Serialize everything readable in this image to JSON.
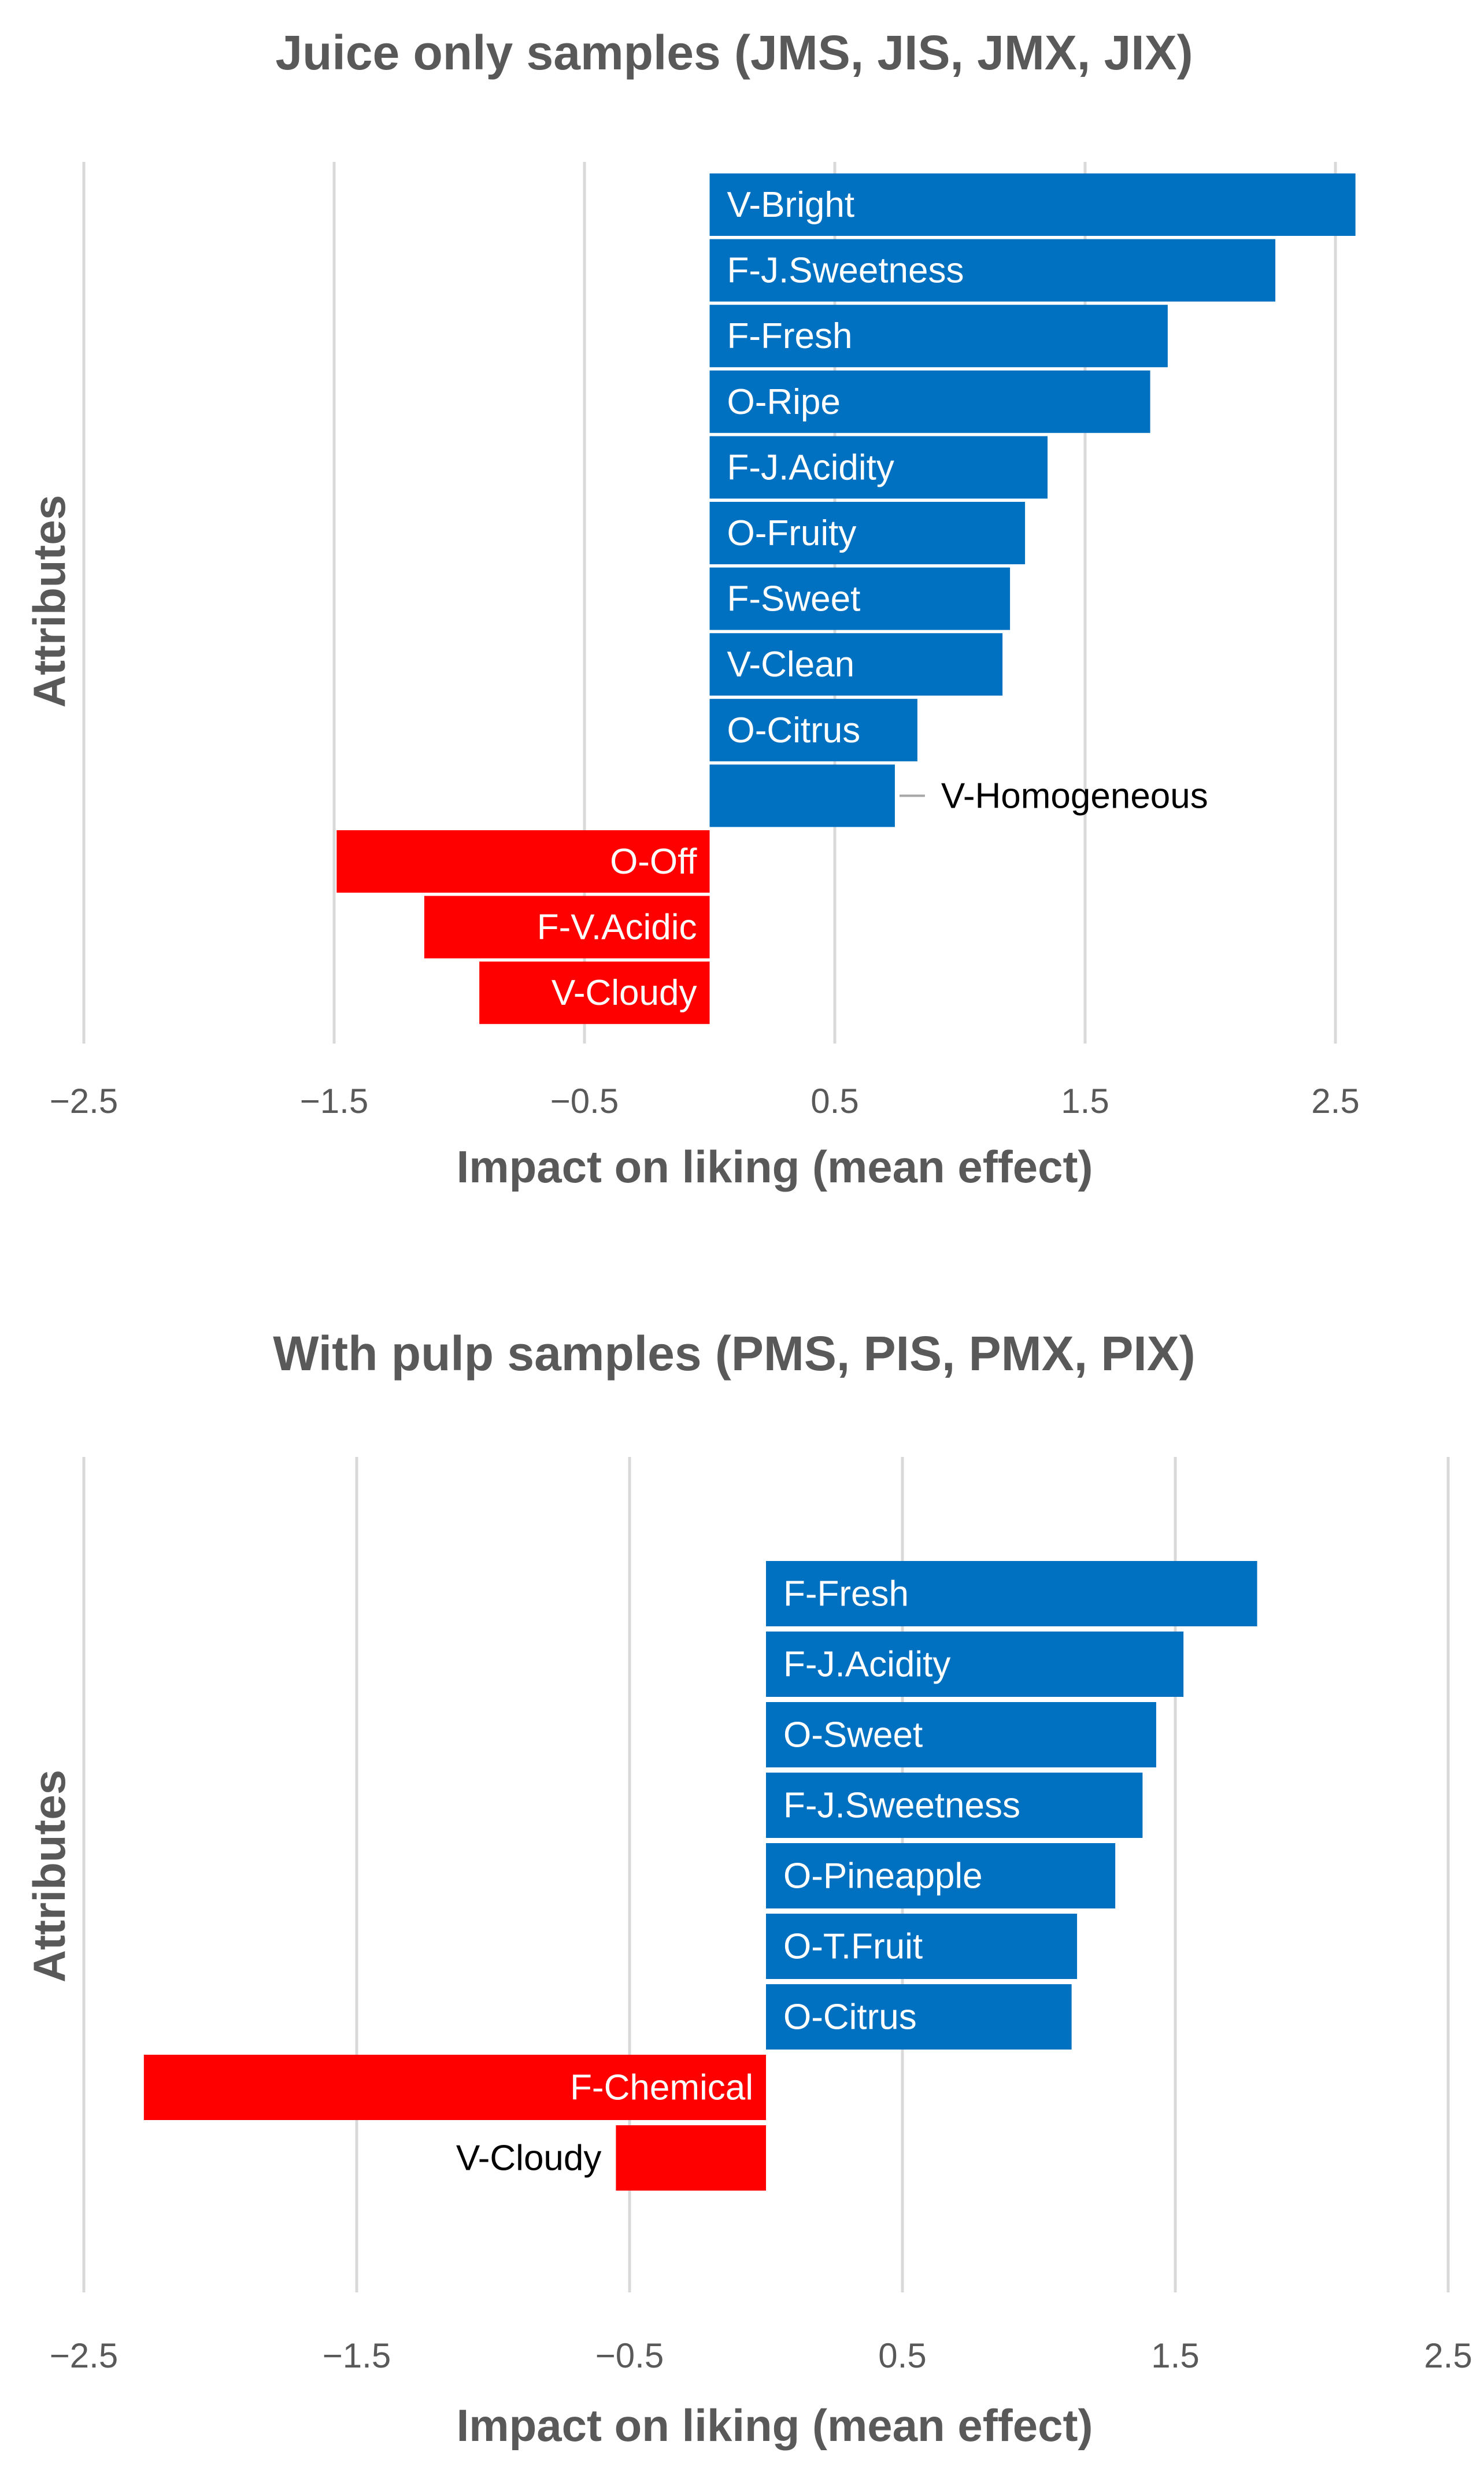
{
  "colors": {
    "positive": "#0070C0",
    "negative": "#FF0000",
    "grid": "#D9D9D9",
    "text": "#595959"
  },
  "chart_data": [
    {
      "type": "bar",
      "orientation": "horizontal",
      "title": "Juice only samples (JMS, JIS, JMX, JIX)",
      "xlabel": "Impact on liking (mean effect)",
      "ylabel": "Attributes",
      "xlim": [
        -2.5,
        2.5
      ],
      "xticks": [
        -2.5,
        -1.5,
        -0.5,
        0.5,
        1.5,
        2.5
      ],
      "xtick_labels": [
        "−2.5",
        "−1.5",
        "−0.5",
        "0.5",
        "1.5",
        "2.5"
      ],
      "grid": true,
      "categories": [
        "V-Bright",
        "F-J.Sweetness",
        "F-Fresh",
        "O-Ripe",
        "F-J.Acidity",
        "O-Fruity",
        "F-Sweet",
        "V-Clean",
        "O-Citrus",
        "V-Homogeneous",
        "O-Off",
        "F-V.Acidic",
        "V-Cloudy"
      ],
      "values": [
        2.58,
        2.26,
        1.83,
        1.76,
        1.35,
        1.26,
        1.2,
        1.17,
        0.83,
        0.74,
        -1.49,
        -1.14,
        -0.92
      ]
    },
    {
      "type": "bar",
      "orientation": "horizontal",
      "title": "With pulp samples (PMS, PIS, PMX, PIX)",
      "xlabel": "Impact on liking (mean effect)",
      "ylabel": "Attributes",
      "xlim": [
        -2.5,
        2.5
      ],
      "xticks": [
        -2.5,
        -1.5,
        -0.5,
        0.5,
        1.5,
        2.5
      ],
      "xtick_labels": [
        "−2.5",
        "−1.5",
        "−0.5",
        "0.5",
        "1.5",
        "2.5"
      ],
      "grid": true,
      "categories": [
        "F-Fresh",
        "F-J.Acidity",
        "O-Sweet",
        "F-J.Sweetness",
        "O-Pineapple",
        "O-T.Fruit",
        "O-Citrus",
        "F-Chemical",
        "V-Cloudy"
      ],
      "values": [
        1.8,
        1.53,
        1.43,
        1.38,
        1.28,
        1.14,
        1.12,
        -2.28,
        -0.55
      ]
    }
  ]
}
